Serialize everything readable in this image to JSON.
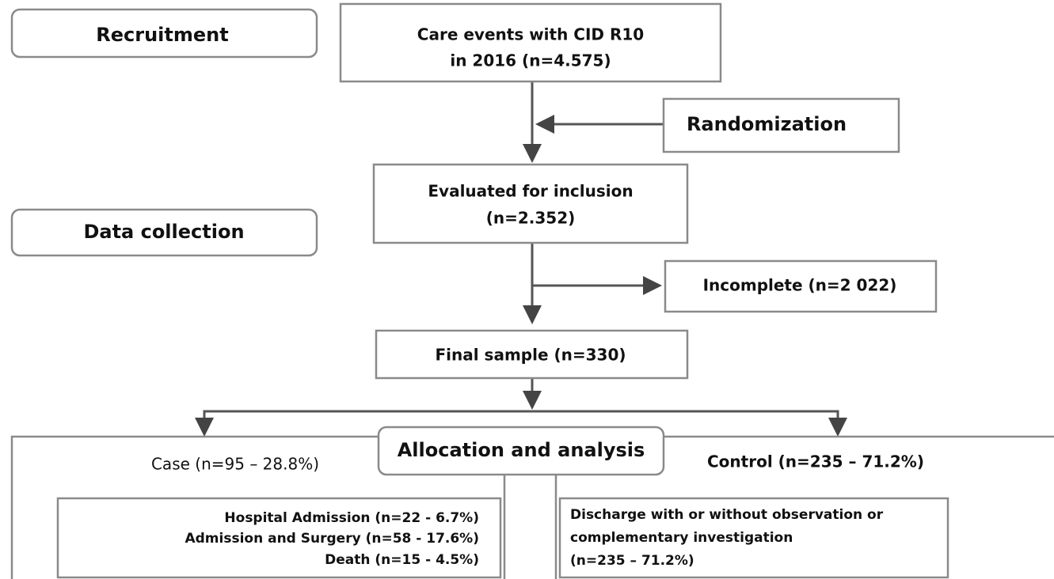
{
  "nodes": [
    {
      "label": "Recruitment"
    },
    {
      "lines": [
        "Care events with CID R10",
        "in 2016 (n=4.575)"
      ]
    },
    {
      "label": "Randomization"
    },
    {
      "lines": [
        "Evaluated for inclusion",
        "(n=2.352)"
      ]
    },
    {
      "label": "Data collection"
    },
    {
      "label": "Incomplete (n=2 022)"
    },
    {
      "label": "Final sample (n=330)"
    },
    {
      "label": "Allocation and analysis"
    },
    {
      "label": "Case (n=95 – 28.8%)"
    },
    {
      "label": "Control (n=235 – 71.2%)"
    },
    {
      "lines": [
        "Hospital Admission (n=22 - 6.7%)",
        "Admission and Surgery (n=58 - 17.6%)",
        "Death (n=15 - 4.5%)"
      ]
    },
    {
      "lines": [
        "Discharge with or without observation or",
        "complementary investigation",
        "(n=235 – 71.2%)"
      ]
    }
  ]
}
